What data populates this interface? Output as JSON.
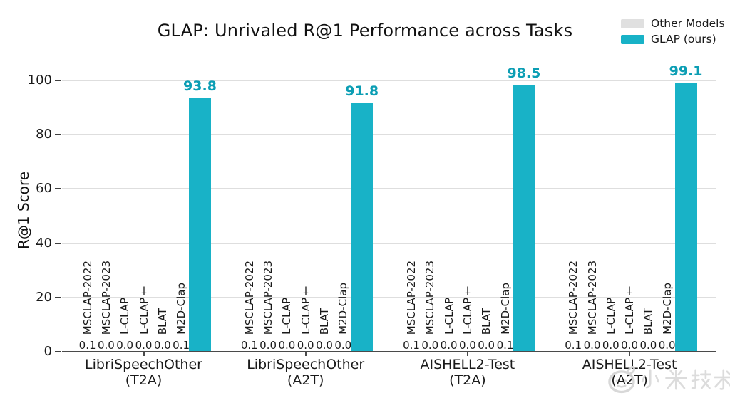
{
  "chart_data": {
    "type": "bar",
    "title": "GLAP: Unrivaled R@1 Performance across Tasks",
    "ylabel": "R@1 Score",
    "ylim": [
      0,
      100
    ],
    "yticks": [
      0,
      20,
      40,
      60,
      80,
      100
    ],
    "grid": true,
    "legend": {
      "position": "top-right",
      "entries": [
        {
          "label": "Other Models",
          "color": "#e0e0e0"
        },
        {
          "label": "GLAP (ours)",
          "color": "#18b2c7"
        }
      ]
    },
    "other_model_names": [
      "MSCLAP-2022",
      "MSCLAP-2023",
      "L-CLAP",
      "L-CLAP†",
      "BLAT",
      "M2D-Clap"
    ],
    "groups": [
      {
        "category_line1": "LibriSpeechOther",
        "category_line2": "(T2A)",
        "other_values": [
          "0.1",
          "0.0",
          "0.0",
          "0.0",
          "0.0",
          "0.1"
        ],
        "glap_value": 93.8,
        "glap_label": "93.8"
      },
      {
        "category_line1": "LibriSpeechOther",
        "category_line2": "(A2T)",
        "other_values": [
          "0.1",
          "0.0",
          "0.0",
          "0.0",
          "0.0",
          "0.0"
        ],
        "glap_value": 91.8,
        "glap_label": "91.8"
      },
      {
        "category_line1": "AISHELL2-Test",
        "category_line2": "(T2A)",
        "other_values": [
          "0.1",
          "0.0",
          "0.0",
          "0.0",
          "0.0",
          "0.1"
        ],
        "glap_value": 98.5,
        "glap_label": "98.5"
      },
      {
        "category_line1": "AISHELL2-Test",
        "category_line2": "(A2T)",
        "other_values": [
          "0.1",
          "0.0",
          "0.0",
          "0.0",
          "0.0",
          "0.0"
        ],
        "glap_value": 99.1,
        "glap_label": "99.1"
      }
    ],
    "colors": {
      "glap_bar": "#18b2c7",
      "glap_value_label": "#0c9eb4",
      "other_bar": "#dcdcdc",
      "gridline": "#dedede",
      "axis": "#4a4a4a",
      "text": "#1a1a1a"
    }
  },
  "watermark": {
    "logo": "mi-bunny-logo",
    "text": "小米技术"
  }
}
